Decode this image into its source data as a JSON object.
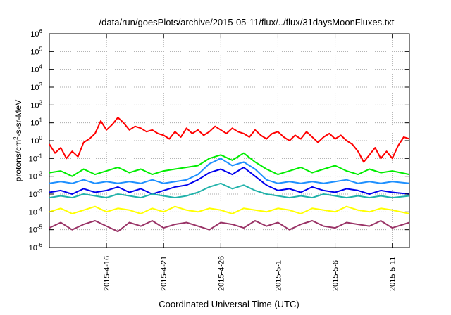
{
  "chart_data": {
    "type": "line",
    "title": "/data/run/goesPlots/archive/2015-05-11/flux/../flux/31daysMoonFluxes.txt",
    "xlabel": "Coordinated Universal Time (UTC)",
    "ylabel": {
      "prefix": "protons/cm",
      "sup": "2",
      "suffix": "-s-sr-MeV"
    },
    "yscale": "log",
    "ylim_exp": [
      -6,
      6
    ],
    "y_ticks": [
      {
        "base": "10",
        "exp": "-6"
      },
      {
        "base": "10",
        "exp": "-5"
      },
      {
        "base": "10",
        "exp": "-4"
      },
      {
        "base": "10",
        "exp": "-3"
      },
      {
        "base": "10",
        "exp": "-2"
      },
      {
        "base": "10",
        "exp": "-1"
      },
      {
        "base": "10",
        "exp": "0"
      },
      {
        "base": "10",
        "exp": "1"
      },
      {
        "base": "10",
        "exp": "2"
      },
      {
        "base": "10",
        "exp": "3"
      },
      {
        "base": "10",
        "exp": "4"
      },
      {
        "base": "10",
        "exp": "5"
      },
      {
        "base": "10",
        "exp": "6"
      }
    ],
    "x_start": "2015-04-11",
    "x_days": 31.5,
    "x_tick_labels": [
      "2015-4-16",
      "2015-4-21",
      "2015-4-26",
      "2015-5-1",
      "2015-5-6",
      "2015-5-11"
    ],
    "x_tick_days": [
      5,
      10,
      15,
      20,
      25,
      30
    ],
    "grid": true,
    "series": [
      {
        "color": "#ff0000",
        "x_days": [
          0,
          0.5,
          1,
          1.5,
          2,
          2.5,
          3,
          3.5,
          4,
          4.5,
          5,
          5.5,
          6,
          6.5,
          7,
          7.5,
          8,
          8.5,
          9,
          9.5,
          10,
          10.5,
          11,
          11.5,
          12,
          12.5,
          13,
          13.5,
          14,
          14.5,
          15,
          15.5,
          16,
          16.5,
          17,
          17.5,
          18,
          18.5,
          19,
          19.5,
          20,
          20.5,
          21,
          21.5,
          22,
          22.5,
          23,
          23.5,
          24,
          24.5,
          25,
          25.5,
          26,
          26.5,
          27,
          27.5,
          28,
          28.5,
          29,
          29.5,
          30,
          30.5,
          31,
          31.5
        ],
        "y_log10": [
          -0.2,
          -0.7,
          -0.4,
          -1.0,
          -0.6,
          -0.9,
          -0.1,
          0.1,
          0.4,
          1.1,
          0.6,
          0.9,
          1.3,
          1.0,
          0.6,
          0.8,
          0.7,
          0.5,
          0.6,
          0.4,
          0.3,
          0.1,
          0.5,
          0.2,
          0.7,
          0.4,
          0.6,
          0.3,
          0.5,
          0.8,
          0.6,
          0.4,
          0.7,
          0.5,
          0.4,
          0.2,
          0.6,
          0.3,
          0.1,
          0.4,
          0.5,
          0.2,
          0.0,
          0.3,
          0.1,
          0.5,
          0.2,
          -0.1,
          0.2,
          0.4,
          0.1,
          0.3,
          0.0,
          -0.2,
          -0.6,
          -1.2,
          -0.8,
          -0.4,
          -1.0,
          -0.6,
          -1.0,
          -0.3,
          0.2,
          0.1
        ]
      },
      {
        "color": "#00ee00",
        "x_days": [
          0,
          1,
          2,
          3,
          4,
          5,
          6,
          7,
          8,
          9,
          10,
          11,
          12,
          13,
          14,
          15,
          16,
          17,
          18,
          19,
          20,
          21,
          22,
          23,
          24,
          25,
          26,
          27,
          28,
          29,
          30,
          31.5
        ],
        "y_log10": [
          -1.8,
          -1.7,
          -2.0,
          -1.6,
          -1.9,
          -1.7,
          -1.5,
          -1.8,
          -1.6,
          -1.9,
          -1.7,
          -1.6,
          -1.5,
          -1.4,
          -1.0,
          -0.8,
          -1.1,
          -0.7,
          -1.2,
          -1.6,
          -1.9,
          -1.7,
          -1.5,
          -1.8,
          -1.6,
          -1.4,
          -1.7,
          -1.9,
          -1.6,
          -1.8,
          -1.7,
          -1.9
        ]
      },
      {
        "color": "#1e90ff",
        "x_days": [
          0,
          1,
          2,
          3,
          4,
          5,
          6,
          7,
          8,
          9,
          10,
          11,
          12,
          13,
          14,
          15,
          16,
          17,
          18,
          19,
          20,
          21,
          22,
          23,
          24,
          25,
          26,
          27,
          28,
          29,
          30,
          31.5
        ],
        "y_log10": [
          -2.4,
          -2.3,
          -2.4,
          -2.2,
          -2.4,
          -2.3,
          -2.4,
          -2.3,
          -2.4,
          -2.2,
          -2.4,
          -2.3,
          -2.2,
          -1.9,
          -1.3,
          -1.0,
          -1.4,
          -1.2,
          -1.6,
          -2.2,
          -2.4,
          -2.3,
          -2.4,
          -2.3,
          -2.4,
          -2.3,
          -2.2,
          -2.4,
          -2.3,
          -2.4,
          -2.3,
          -2.4
        ]
      },
      {
        "color": "#0000ee",
        "x_days": [
          0,
          1,
          2,
          3,
          4,
          5,
          6,
          7,
          8,
          9,
          10,
          11,
          12,
          13,
          14,
          15,
          16,
          17,
          18,
          19,
          20,
          21,
          22,
          23,
          24,
          25,
          26,
          27,
          28,
          29,
          30,
          31.5
        ],
        "y_log10": [
          -2.9,
          -2.8,
          -3.0,
          -2.7,
          -2.9,
          -2.8,
          -2.6,
          -2.9,
          -2.7,
          -3.0,
          -2.8,
          -2.6,
          -2.5,
          -2.2,
          -1.8,
          -1.6,
          -1.9,
          -1.5,
          -2.0,
          -2.5,
          -2.8,
          -2.7,
          -2.9,
          -2.6,
          -2.8,
          -2.9,
          -2.7,
          -2.8,
          -3.0,
          -2.8,
          -2.9,
          -3.0
        ]
      },
      {
        "color": "#20b2aa",
        "x_days": [
          0,
          1,
          2,
          3,
          4,
          5,
          6,
          7,
          8,
          9,
          10,
          11,
          12,
          13,
          14,
          15,
          16,
          17,
          18,
          19,
          20,
          21,
          22,
          23,
          24,
          25,
          26,
          27,
          28,
          29,
          30,
          31.5
        ],
        "y_log10": [
          -3.2,
          -3.1,
          -3.2,
          -3.0,
          -3.1,
          -3.2,
          -3.0,
          -3.1,
          -3.2,
          -3.0,
          -3.1,
          -3.2,
          -3.1,
          -2.9,
          -2.6,
          -2.4,
          -2.7,
          -2.5,
          -2.8,
          -3.0,
          -3.1,
          -3.2,
          -3.1,
          -3.2,
          -3.0,
          -3.1,
          -3.2,
          -3.1,
          -3.2,
          -3.1,
          -3.2,
          -3.1
        ]
      },
      {
        "color": "#ffff00",
        "x_days": [
          0,
          1,
          2,
          3,
          4,
          5,
          6,
          7,
          8,
          9,
          10,
          11,
          12,
          13,
          14,
          15,
          16,
          17,
          18,
          19,
          20,
          21,
          22,
          23,
          24,
          25,
          26,
          27,
          28,
          29,
          30,
          31.5
        ],
        "y_log10": [
          -4.0,
          -3.8,
          -4.1,
          -3.9,
          -3.7,
          -4.0,
          -3.8,
          -3.9,
          -4.1,
          -3.8,
          -4.0,
          -3.7,
          -3.9,
          -4.0,
          -3.8,
          -3.9,
          -4.1,
          -3.8,
          -3.9,
          -4.0,
          -3.8,
          -3.9,
          -4.1,
          -3.8,
          -3.9,
          -4.0,
          -3.7,
          -3.9,
          -4.0,
          -3.8,
          -3.9,
          -4.1
        ]
      },
      {
        "color": "#993366",
        "x_days": [
          0,
          1,
          2,
          3,
          4,
          5,
          6,
          7,
          8,
          9,
          10,
          11,
          12,
          13,
          14,
          15,
          16,
          17,
          18,
          19,
          20,
          21,
          22,
          23,
          24,
          25,
          26,
          27,
          28,
          29,
          30,
          31.5
        ],
        "y_log10": [
          -4.9,
          -4.6,
          -5.0,
          -4.7,
          -4.5,
          -4.8,
          -5.1,
          -4.6,
          -4.8,
          -4.5,
          -4.9,
          -4.7,
          -4.6,
          -4.8,
          -5.0,
          -4.6,
          -4.7,
          -4.9,
          -4.5,
          -4.8,
          -4.6,
          -5.0,
          -4.7,
          -4.5,
          -4.8,
          -4.9,
          -4.6,
          -4.7,
          -4.8,
          -4.5,
          -4.9,
          -4.6
        ]
      }
    ]
  }
}
